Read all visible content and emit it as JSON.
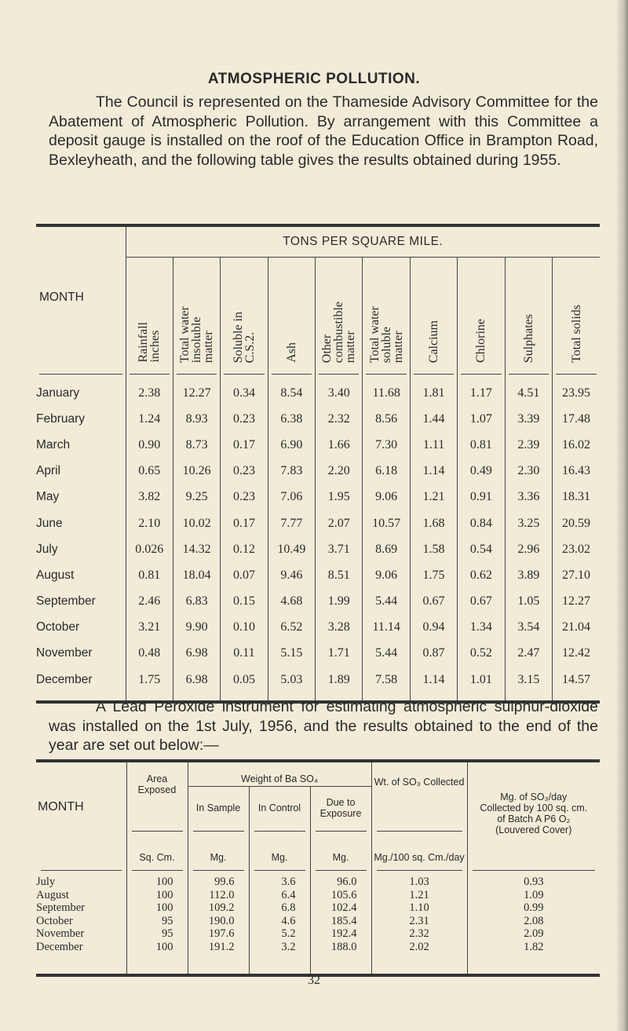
{
  "title": "ATMOSPHERIC POLLUTION.",
  "intro": "The Council is represented on the Thameside Advisory Committee for the Abatement of Atmospheric Pollution. By arrangement with this Committee a deposit gauge is installed on the roof of the Education Office in Brampton Road, Bexleyheath, and the following table gives the results obtained during 1955.",
  "table1": {
    "month_header": "MONTH",
    "group_header": "TONS PER SQUARE MILE.",
    "columns": [
      "Rainfall\ninches",
      "Total water\ninsoluble\nmatter",
      "Soluble in\nC.S.2.",
      "Ash",
      "Other\ncombustible\nmatter",
      "Total water\nsoluble\nmatter",
      "Calcium",
      "Chlorine",
      "Sulphates",
      "Total solids"
    ],
    "rows": [
      [
        "January",
        "2.38",
        "12.27",
        "0.34",
        "8.54",
        "3.40",
        "11.68",
        "1.81",
        "1.17",
        "4.51",
        "23.95"
      ],
      [
        "February",
        "1.24",
        "8.93",
        "0.23",
        "6.38",
        "2.32",
        "8.56",
        "1.44",
        "1.07",
        "3.39",
        "17.48"
      ],
      [
        "March",
        "0.90",
        "8.73",
        "0.17",
        "6.90",
        "1.66",
        "7.30",
        "1.11",
        "0.81",
        "2.39",
        "16.02"
      ],
      [
        "April",
        "0.65",
        "10.26",
        "0.23",
        "7.83",
        "2.20",
        "6.18",
        "1.14",
        "0.49",
        "2.30",
        "16.43"
      ],
      [
        "May",
        "3.82",
        "9.25",
        "0.23",
        "7.06",
        "1.95",
        "9.06",
        "1.21",
        "0.91",
        "3.36",
        "18.31"
      ],
      [
        "June",
        "2.10",
        "10.02",
        "0.17",
        "7.77",
        "2.07",
        "10.57",
        "1.68",
        "0.84",
        "3.25",
        "20.59"
      ],
      [
        "July",
        "0.026",
        "14.32",
        "0.12",
        "10.49",
        "3.71",
        "8.69",
        "1.58",
        "0.54",
        "2.96",
        "23.02"
      ],
      [
        "August",
        "0.81",
        "18.04",
        "0.07",
        "9.46",
        "8.51",
        "9.06",
        "1.75",
        "0.62",
        "3.89",
        "27.10"
      ],
      [
        "September",
        "2.46",
        "6.83",
        "0.15",
        "4.68",
        "1.99",
        "5.44",
        "0.67",
        "0.67",
        "1.05",
        "12.27"
      ],
      [
        "October",
        "3.21",
        "9.90",
        "0.10",
        "6.52",
        "3.28",
        "11.14",
        "0.94",
        "1.34",
        "3.54",
        "21.04"
      ],
      [
        "November",
        "0.48",
        "6.98",
        "0.11",
        "5.15",
        "1.71",
        "5.44",
        "0.87",
        "0.52",
        "2.47",
        "12.42"
      ],
      [
        "December",
        "1.75",
        "6.98",
        "0.05",
        "5.03",
        "1.89",
        "7.58",
        "1.14",
        "1.01",
        "3.15",
        "14.57"
      ]
    ]
  },
  "second_para": "A Lead Peroxide instrument for estimating atmospheric sulphur-dioxide was installed on the 1st July, 1956, and the results obtained to the end of the year are set out below:—",
  "table2": {
    "month_header": "MONTH",
    "area_header": "Area Exposed",
    "weight_header": "Weight of Ba SO₄",
    "in_sample": "In Sample",
    "in_control": "In Control",
    "due_exposure": "Due to Exposure",
    "wt_so3": "Wt. of SO₃ Collected",
    "mg_so3": "Mg. of SO₃/day Collected by 100 sq. cm. of Batch A P6 O₂ (Louvered Cover)",
    "unit_area": "Sq. Cm.",
    "unit_mg1": "Mg.",
    "unit_mg2": "Mg.",
    "unit_mg3": "Mg.",
    "unit_wt": "Mg./100 sq. Cm./day",
    "rows": [
      [
        "July",
        "100",
        "99.6",
        "3.6",
        "96.0",
        "1.03",
        "0.93"
      ],
      [
        "August",
        "100",
        "112.0",
        "6.4",
        "105.6",
        "1.21",
        "1.09"
      ],
      [
        "September",
        "100",
        "109.2",
        "6.8",
        "102.4",
        "1.10",
        "0.99"
      ],
      [
        "October",
        "95",
        "190.0",
        "4.6",
        "185.4",
        "2.31",
        "2.08"
      ],
      [
        "November",
        "95",
        "197.6",
        "5.2",
        "192.4",
        "2.32",
        "2.09"
      ],
      [
        "December",
        "100",
        "191.2",
        "3.2",
        "188.0",
        "2.02",
        "1.82"
      ]
    ]
  },
  "page_number": "32"
}
